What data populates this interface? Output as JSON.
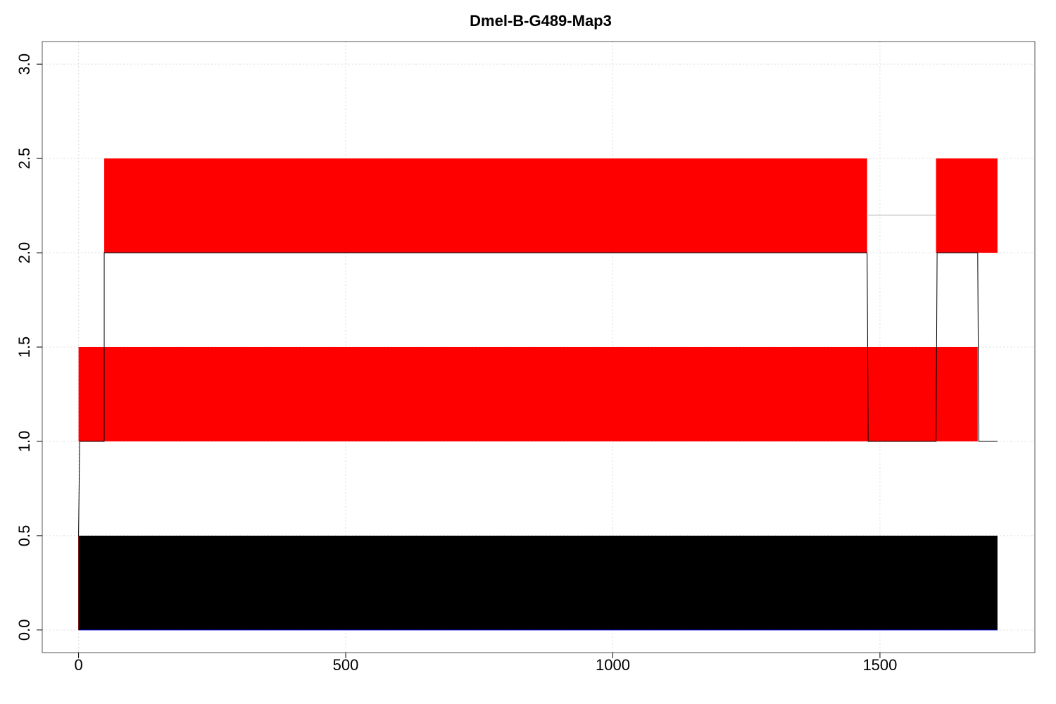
{
  "chart_data": {
    "type": "area",
    "title": "Dmel-B-G489-Map3",
    "xlabel": "",
    "ylabel": "",
    "xlim": [
      -68,
      1790
    ],
    "ylim": [
      -0.12,
      3.12
    ],
    "x_ticks": [
      0,
      500,
      1000,
      1500
    ],
    "x_tick_labels": [
      "0",
      "500",
      "1000",
      "1500"
    ],
    "y_ticks": [
      0,
      0.5,
      1,
      1.5,
      2,
      2.5,
      3
    ],
    "y_tick_labels": [
      "0.0",
      "0.5",
      "1.0",
      "1.5",
      "2.0",
      "2.5",
      "3.0"
    ],
    "grid": true,
    "colors": {
      "red_band": "#ff0000",
      "black_band": "#000000",
      "outline": "#000000",
      "thin_line": "#aaaaaa",
      "baseline": "#0000cc"
    },
    "bands": [
      {
        "name": "",
        "color": "#000000",
        "segments": [
          {
            "x": [
              0,
              1720
            ],
            "y": [
              0.0,
              0.5
            ]
          }
        ]
      },
      {
        "name": "",
        "color": "#ff0000",
        "segments": [
          {
            "x": [
              0,
              1683
            ],
            "y": [
              1.0,
              1.5
            ]
          }
        ]
      },
      {
        "name": "",
        "color": "#ff0000",
        "segments": [
          {
            "x": [
              48,
              1476
            ],
            "y": [
              2.0,
              2.5
            ]
          },
          {
            "x": [
              1605,
              1720
            ],
            "y": [
              2.0,
              2.5
            ]
          }
        ]
      }
    ],
    "outline": {
      "points": [
        [
          0,
          0.5
        ],
        [
          2,
          1.0
        ],
        [
          48,
          1.0
        ],
        [
          48,
          2.0
        ],
        [
          1476,
          2.0
        ],
        [
          1478,
          1.0
        ],
        [
          1605,
          1.0
        ],
        [
          1607,
          2.0
        ],
        [
          1683,
          2.0
        ],
        [
          1685,
          1.0
        ],
        [
          1720,
          1.0
        ]
      ]
    },
    "thin_segment": {
      "x": [
        1478,
        1605
      ],
      "y": 2.2
    },
    "baseline": {
      "x": [
        0,
        1720
      ],
      "y": 0.0
    }
  }
}
